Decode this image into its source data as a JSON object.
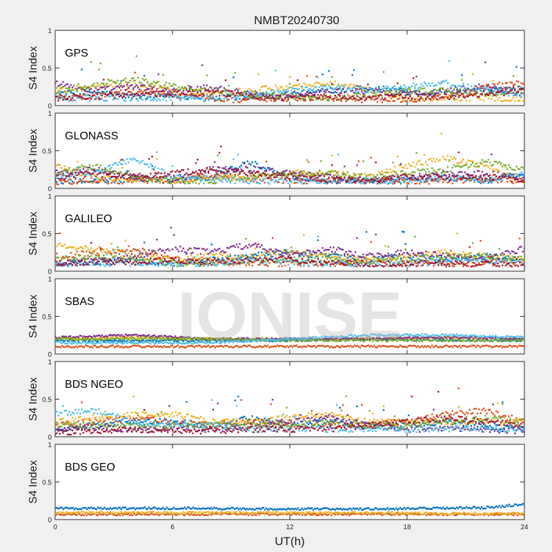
{
  "title": "NMBT20240730",
  "watermark": "IONISE",
  "xlabel": "UT(h)",
  "x_ticks": [
    0,
    6,
    12,
    18,
    24
  ],
  "chart_data": [
    {
      "type": "scatter",
      "panel_label": "GPS",
      "ylabel": "S4 Index",
      "xlim": [
        0,
        24
      ],
      "ylim": [
        0,
        1
      ],
      "y_ticks": [
        0,
        0.5,
        1
      ],
      "series": [
        {
          "color": "#0072BD",
          "x": [
            0,
            2,
            4,
            6,
            8,
            10,
            12,
            14,
            16,
            18,
            20,
            22,
            24
          ],
          "y": [
            0.15,
            0.18,
            0.12,
            0.14,
            0.1,
            0.12,
            0.15,
            0.2,
            0.25,
            0.18,
            0.15,
            0.2,
            0.22
          ]
        },
        {
          "color": "#D95319",
          "x": [
            0,
            2,
            4,
            6,
            8,
            10,
            12,
            14,
            16,
            18,
            20,
            22,
            24
          ],
          "y": [
            0.1,
            0.12,
            0.2,
            0.15,
            0.08,
            0.08,
            0.1,
            0.1,
            0.08,
            0.08,
            0.12,
            0.25,
            0.3
          ]
        },
        {
          "color": "#EDB120",
          "x": [
            0,
            2,
            4,
            6,
            8,
            10,
            12,
            14,
            16,
            18,
            20,
            22,
            24
          ],
          "y": [
            0.2,
            0.25,
            0.3,
            0.2,
            0.15,
            0.2,
            0.25,
            0.3,
            0.2,
            0.1,
            0.1,
            0.1,
            0.08
          ]
        },
        {
          "color": "#7E2F8E",
          "x": [
            0,
            2,
            4,
            6,
            8,
            10,
            12,
            14,
            16,
            18,
            20,
            22,
            24
          ],
          "y": [
            0.3,
            0.2,
            0.25,
            0.2,
            0.25,
            0.15,
            0.12,
            0.2,
            0.2,
            0.15,
            0.2,
            0.25,
            0.15
          ]
        },
        {
          "color": "#77AC30",
          "x": [
            0,
            2,
            4,
            6,
            8,
            10,
            12,
            14,
            16,
            18,
            20,
            22,
            24
          ],
          "y": [
            0.2,
            0.28,
            0.35,
            0.25,
            0.2,
            0.15,
            0.12,
            0.1,
            0.15,
            0.2,
            0.2,
            0.15,
            0.2
          ]
        },
        {
          "color": "#4DBEEE",
          "x": [
            0,
            2,
            4,
            6,
            8,
            10,
            12,
            14,
            16,
            18,
            20,
            22,
            24
          ],
          "y": [
            0.1,
            0.1,
            0.1,
            0.1,
            0.1,
            0.15,
            0.2,
            0.25,
            0.2,
            0.25,
            0.3,
            0.2,
            0.15
          ]
        },
        {
          "color": "#A2142F",
          "x": [
            0,
            2,
            4,
            6,
            8,
            10,
            12,
            14,
            16,
            18,
            20,
            22,
            24
          ],
          "y": [
            0.1,
            0.12,
            0.15,
            0.15,
            0.18,
            0.12,
            0.1,
            0.12,
            0.1,
            0.12,
            0.12,
            0.15,
            0.2
          ]
        }
      ]
    },
    {
      "type": "scatter",
      "panel_label": "GLONASS",
      "ylabel": "S4 Index",
      "xlim": [
        0,
        24
      ],
      "ylim": [
        0,
        1
      ],
      "y_ticks": [
        0,
        0.5,
        1
      ],
      "series": [
        {
          "color": "#0072BD",
          "x": [
            0,
            2,
            4,
            6,
            8,
            10,
            12,
            14,
            16,
            18,
            20,
            22,
            24
          ],
          "y": [
            0.1,
            0.1,
            0.12,
            0.1,
            0.15,
            0.35,
            0.12,
            0.1,
            0.1,
            0.1,
            0.15,
            0.1,
            0.2
          ]
        },
        {
          "color": "#D95319",
          "x": [
            0,
            2,
            4,
            6,
            8,
            10,
            12,
            14,
            16,
            18,
            20,
            22,
            24
          ],
          "y": [
            0.08,
            0.1,
            0.1,
            0.1,
            0.18,
            0.12,
            0.1,
            0.1,
            0.1,
            0.1,
            0.1,
            0.12,
            0.1
          ]
        },
        {
          "color": "#EDB120",
          "x": [
            0,
            2,
            4,
            6,
            8,
            10,
            12,
            14,
            16,
            18,
            20,
            22,
            24
          ],
          "y": [
            0.3,
            0.15,
            0.12,
            0.1,
            0.15,
            0.15,
            0.2,
            0.2,
            0.15,
            0.3,
            0.4,
            0.3,
            0.1
          ]
        },
        {
          "color": "#7E2F8E",
          "x": [
            0,
            2,
            4,
            6,
            8,
            10,
            12,
            14,
            16,
            18,
            20,
            22,
            24
          ],
          "y": [
            0.2,
            0.25,
            0.15,
            0.12,
            0.25,
            0.25,
            0.2,
            0.15,
            0.1,
            0.15,
            0.2,
            0.2,
            0.15
          ]
        },
        {
          "color": "#77AC30",
          "x": [
            0,
            2,
            4,
            6,
            8,
            10,
            12,
            14,
            16,
            18,
            20,
            22,
            24
          ],
          "y": [
            0.2,
            0.3,
            0.15,
            0.1,
            0.1,
            0.15,
            0.2,
            0.2,
            0.15,
            0.2,
            0.25,
            0.35,
            0.25
          ]
        },
        {
          "color": "#4DBEEE",
          "x": [
            0,
            2,
            4,
            6,
            8,
            10,
            12,
            14,
            16,
            18,
            20,
            22,
            24
          ],
          "y": [
            0.15,
            0.2,
            0.4,
            0.15,
            0.12,
            0.1,
            0.1,
            0.1,
            0.1,
            0.1,
            0.15,
            0.1,
            0.2
          ]
        },
        {
          "color": "#A2142F",
          "x": [
            0,
            2,
            4,
            6,
            8,
            10,
            12,
            14,
            16,
            18,
            20,
            22,
            24
          ],
          "y": [
            0.15,
            0.2,
            0.15,
            0.2,
            0.25,
            0.2,
            0.15,
            0.12,
            0.1,
            0.15,
            0.15,
            0.15,
            0.12
          ]
        }
      ]
    },
    {
      "type": "scatter",
      "panel_label": "GALILEO",
      "ylabel": "S4 Index",
      "xlim": [
        0,
        24
      ],
      "ylim": [
        0,
        1
      ],
      "y_ticks": [
        0,
        0.5,
        1
      ],
      "series": [
        {
          "color": "#0072BD",
          "x": [
            0,
            2,
            4,
            6,
            8,
            10,
            12,
            14,
            16,
            18,
            20,
            22,
            24
          ],
          "y": [
            0.1,
            0.12,
            0.15,
            0.1,
            0.15,
            0.2,
            0.25,
            0.2,
            0.15,
            0.2,
            0.15,
            0.2,
            0.15
          ]
        },
        {
          "color": "#D95319",
          "x": [
            0,
            2,
            4,
            6,
            8,
            10,
            12,
            14,
            16,
            18,
            20,
            22,
            24
          ],
          "y": [
            0.2,
            0.25,
            0.3,
            0.15,
            0.12,
            0.1,
            0.1,
            0.1,
            0.1,
            0.1,
            0.1,
            0.1,
            0.12
          ]
        },
        {
          "color": "#EDB120",
          "x": [
            0,
            2,
            4,
            6,
            8,
            10,
            12,
            14,
            16,
            18,
            20,
            22,
            24
          ],
          "y": [
            0.35,
            0.3,
            0.2,
            0.15,
            0.2,
            0.2,
            0.25,
            0.2,
            0.15,
            0.2,
            0.25,
            0.2,
            0.15
          ]
        },
        {
          "color": "#7E2F8E",
          "x": [
            0,
            2,
            4,
            6,
            8,
            10,
            12,
            14,
            16,
            18,
            20,
            22,
            24
          ],
          "y": [
            0.1,
            0.15,
            0.2,
            0.3,
            0.25,
            0.35,
            0.2,
            0.3,
            0.2,
            0.25,
            0.2,
            0.15,
            0.3
          ]
        },
        {
          "color": "#77AC30",
          "x": [
            0,
            2,
            4,
            6,
            8,
            10,
            12,
            14,
            16,
            18,
            20,
            22,
            24
          ],
          "y": [
            0.15,
            0.2,
            0.15,
            0.1,
            0.1,
            0.15,
            0.15,
            0.15,
            0.12,
            0.15,
            0.2,
            0.2,
            0.15
          ]
        },
        {
          "color": "#4DBEEE",
          "x": [
            0,
            2,
            4,
            6,
            8,
            10,
            12,
            14,
            16,
            18,
            20,
            22,
            24
          ],
          "y": [
            0.1,
            0.1,
            0.1,
            0.1,
            0.1,
            0.15,
            0.12,
            0.1,
            0.1,
            0.1,
            0.12,
            0.15,
            0.1
          ]
        },
        {
          "color": "#A2142F",
          "x": [
            0,
            2,
            4,
            6,
            8,
            10,
            12,
            14,
            16,
            18,
            20,
            22,
            24
          ],
          "y": [
            0.1,
            0.12,
            0.12,
            0.15,
            0.12,
            0.15,
            0.15,
            0.12,
            0.1,
            0.1,
            0.1,
            0.1,
            0.1
          ]
        }
      ]
    },
    {
      "type": "scatter",
      "panel_label": "SBAS",
      "ylabel": "S4 Index",
      "xlim": [
        0,
        24
      ],
      "ylim": [
        0,
        1
      ],
      "y_ticks": [
        0,
        0.5,
        1
      ],
      "series": [
        {
          "color": "#0072BD",
          "x": [
            0,
            4,
            8,
            12,
            16,
            20,
            24
          ],
          "y": [
            0.18,
            0.18,
            0.18,
            0.18,
            0.2,
            0.18,
            0.18
          ]
        },
        {
          "color": "#D95319",
          "x": [
            0,
            4,
            8,
            12,
            16,
            20,
            24
          ],
          "y": [
            0.1,
            0.1,
            0.1,
            0.1,
            0.1,
            0.1,
            0.1
          ]
        },
        {
          "color": "#EDB120",
          "x": [
            0,
            4,
            8,
            12,
            16,
            20,
            24
          ],
          "y": [
            0.2,
            0.22,
            0.2,
            0.2,
            0.2,
            0.22,
            0.2
          ]
        },
        {
          "color": "#7E2F8E",
          "x": [
            0,
            4,
            8,
            12,
            16,
            20,
            24
          ],
          "y": [
            0.22,
            0.25,
            0.2,
            0.2,
            0.2,
            0.22,
            0.2
          ]
        },
        {
          "color": "#77AC30",
          "x": [
            0,
            4,
            8,
            12,
            16,
            20,
            24
          ],
          "y": [
            0.2,
            0.2,
            0.2,
            0.18,
            0.18,
            0.18,
            0.18
          ]
        },
        {
          "color": "#4DBEEE",
          "x": [
            0,
            4,
            8,
            12,
            16,
            20,
            24
          ],
          "y": [
            0.15,
            0.15,
            0.15,
            0.2,
            0.25,
            0.25,
            0.22
          ]
        }
      ]
    },
    {
      "type": "scatter",
      "panel_label": "BDS NGEO",
      "ylabel": "S4 Index",
      "xlim": [
        0,
        24
      ],
      "ylim": [
        0,
        1
      ],
      "y_ticks": [
        0,
        0.5,
        1
      ],
      "series": [
        {
          "color": "#0072BD",
          "x": [
            0,
            2,
            4,
            6,
            8,
            10,
            12,
            14,
            16,
            18,
            20,
            22,
            24
          ],
          "y": [
            0.1,
            0.15,
            0.2,
            0.2,
            0.15,
            0.25,
            0.15,
            0.2,
            0.15,
            0.15,
            0.2,
            0.15,
            0.1
          ]
        },
        {
          "color": "#D95319",
          "x": [
            0,
            2,
            4,
            6,
            8,
            10,
            12,
            14,
            16,
            18,
            20,
            22,
            24
          ],
          "y": [
            0.15,
            0.2,
            0.25,
            0.2,
            0.15,
            0.2,
            0.15,
            0.15,
            0.15,
            0.2,
            0.3,
            0.35,
            0.2
          ]
        },
        {
          "color": "#EDB120",
          "x": [
            0,
            2,
            4,
            6,
            8,
            10,
            12,
            14,
            16,
            18,
            20,
            22,
            24
          ],
          "y": [
            0.2,
            0.25,
            0.3,
            0.3,
            0.2,
            0.2,
            0.25,
            0.3,
            0.2,
            0.2,
            0.2,
            0.2,
            0.2
          ]
        },
        {
          "color": "#7E2F8E",
          "x": [
            0,
            2,
            4,
            6,
            8,
            10,
            12,
            14,
            16,
            18,
            20,
            22,
            24
          ],
          "y": [
            0.1,
            0.12,
            0.1,
            0.1,
            0.1,
            0.15,
            0.2,
            0.25,
            0.15,
            0.1,
            0.1,
            0.1,
            0.08
          ]
        },
        {
          "color": "#77AC30",
          "x": [
            0,
            2,
            4,
            6,
            8,
            10,
            12,
            14,
            16,
            18,
            20,
            22,
            24
          ],
          "y": [
            0.15,
            0.15,
            0.15,
            0.15,
            0.15,
            0.15,
            0.15,
            0.2,
            0.15,
            0.15,
            0.2,
            0.25,
            0.2
          ]
        },
        {
          "color": "#4DBEEE",
          "x": [
            0,
            2,
            4,
            6,
            8,
            10,
            12,
            14,
            16,
            18,
            20,
            22,
            24
          ],
          "y": [
            0.3,
            0.35,
            0.2,
            0.15,
            0.15,
            0.1,
            0.1,
            0.1,
            0.1,
            0.1,
            0.1,
            0.1,
            0.1
          ]
        },
        {
          "color": "#A2142F",
          "x": [
            0,
            2,
            4,
            6,
            8,
            10,
            12,
            14,
            16,
            18,
            20,
            22,
            24
          ],
          "y": [
            0.05,
            0.08,
            0.1,
            0.08,
            0.08,
            0.1,
            0.1,
            0.1,
            0.15,
            0.2,
            0.25,
            0.2,
            0.15
          ]
        }
      ]
    },
    {
      "type": "scatter",
      "panel_label": "BDS GEO",
      "ylabel": "S4 Index",
      "xlim": [
        0,
        24
      ],
      "ylim": [
        0,
        1
      ],
      "y_ticks": [
        0,
        0.5,
        1
      ],
      "series": [
        {
          "color": "#0072BD",
          "x": [
            0,
            4,
            8,
            12,
            16,
            20,
            22,
            24
          ],
          "y": [
            0.15,
            0.15,
            0.15,
            0.14,
            0.14,
            0.15,
            0.16,
            0.2
          ]
        },
        {
          "color": "#D95319",
          "x": [
            0,
            4,
            8,
            12,
            16,
            20,
            24
          ],
          "y": [
            0.07,
            0.07,
            0.07,
            0.07,
            0.07,
            0.07,
            0.07
          ]
        },
        {
          "color": "#EDB120",
          "x": [
            0,
            4,
            8,
            12,
            16,
            20,
            24
          ],
          "y": [
            0.09,
            0.09,
            0.09,
            0.09,
            0.09,
            0.08,
            0.08
          ]
        }
      ]
    }
  ]
}
